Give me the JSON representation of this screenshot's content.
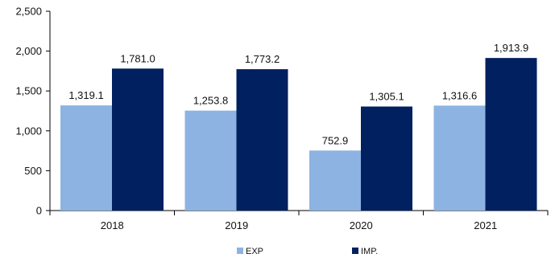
{
  "chart_data": {
    "type": "bar",
    "categories": [
      "2018",
      "2019",
      "2020",
      "2021"
    ],
    "series": [
      {
        "name": "EXP",
        "values": [
          1319.1,
          1253.8,
          752.9,
          1316.6
        ],
        "labels": [
          "1,319.1",
          "1,253.8",
          "752.9",
          "1,316.6"
        ],
        "color": "#8DB3E2"
      },
      {
        "name": "IMP.",
        "values": [
          1781.0,
          1773.2,
          1305.1,
          1913.9
        ],
        "labels": [
          "1,781.0",
          "1,773.2",
          "1,305.1",
          "1,913.9"
        ],
        "color": "#002060"
      }
    ],
    "ylim": [
      0,
      2500
    ],
    "yticks": [
      0,
      500,
      1000,
      1500,
      2000,
      2500
    ],
    "ytick_labels": [
      "0",
      "500",
      "1,000",
      "1,500",
      "2,000",
      "2,500"
    ],
    "title": "",
    "xlabel": "",
    "ylabel": "",
    "grid": false,
    "legend_position": "bottom"
  }
}
